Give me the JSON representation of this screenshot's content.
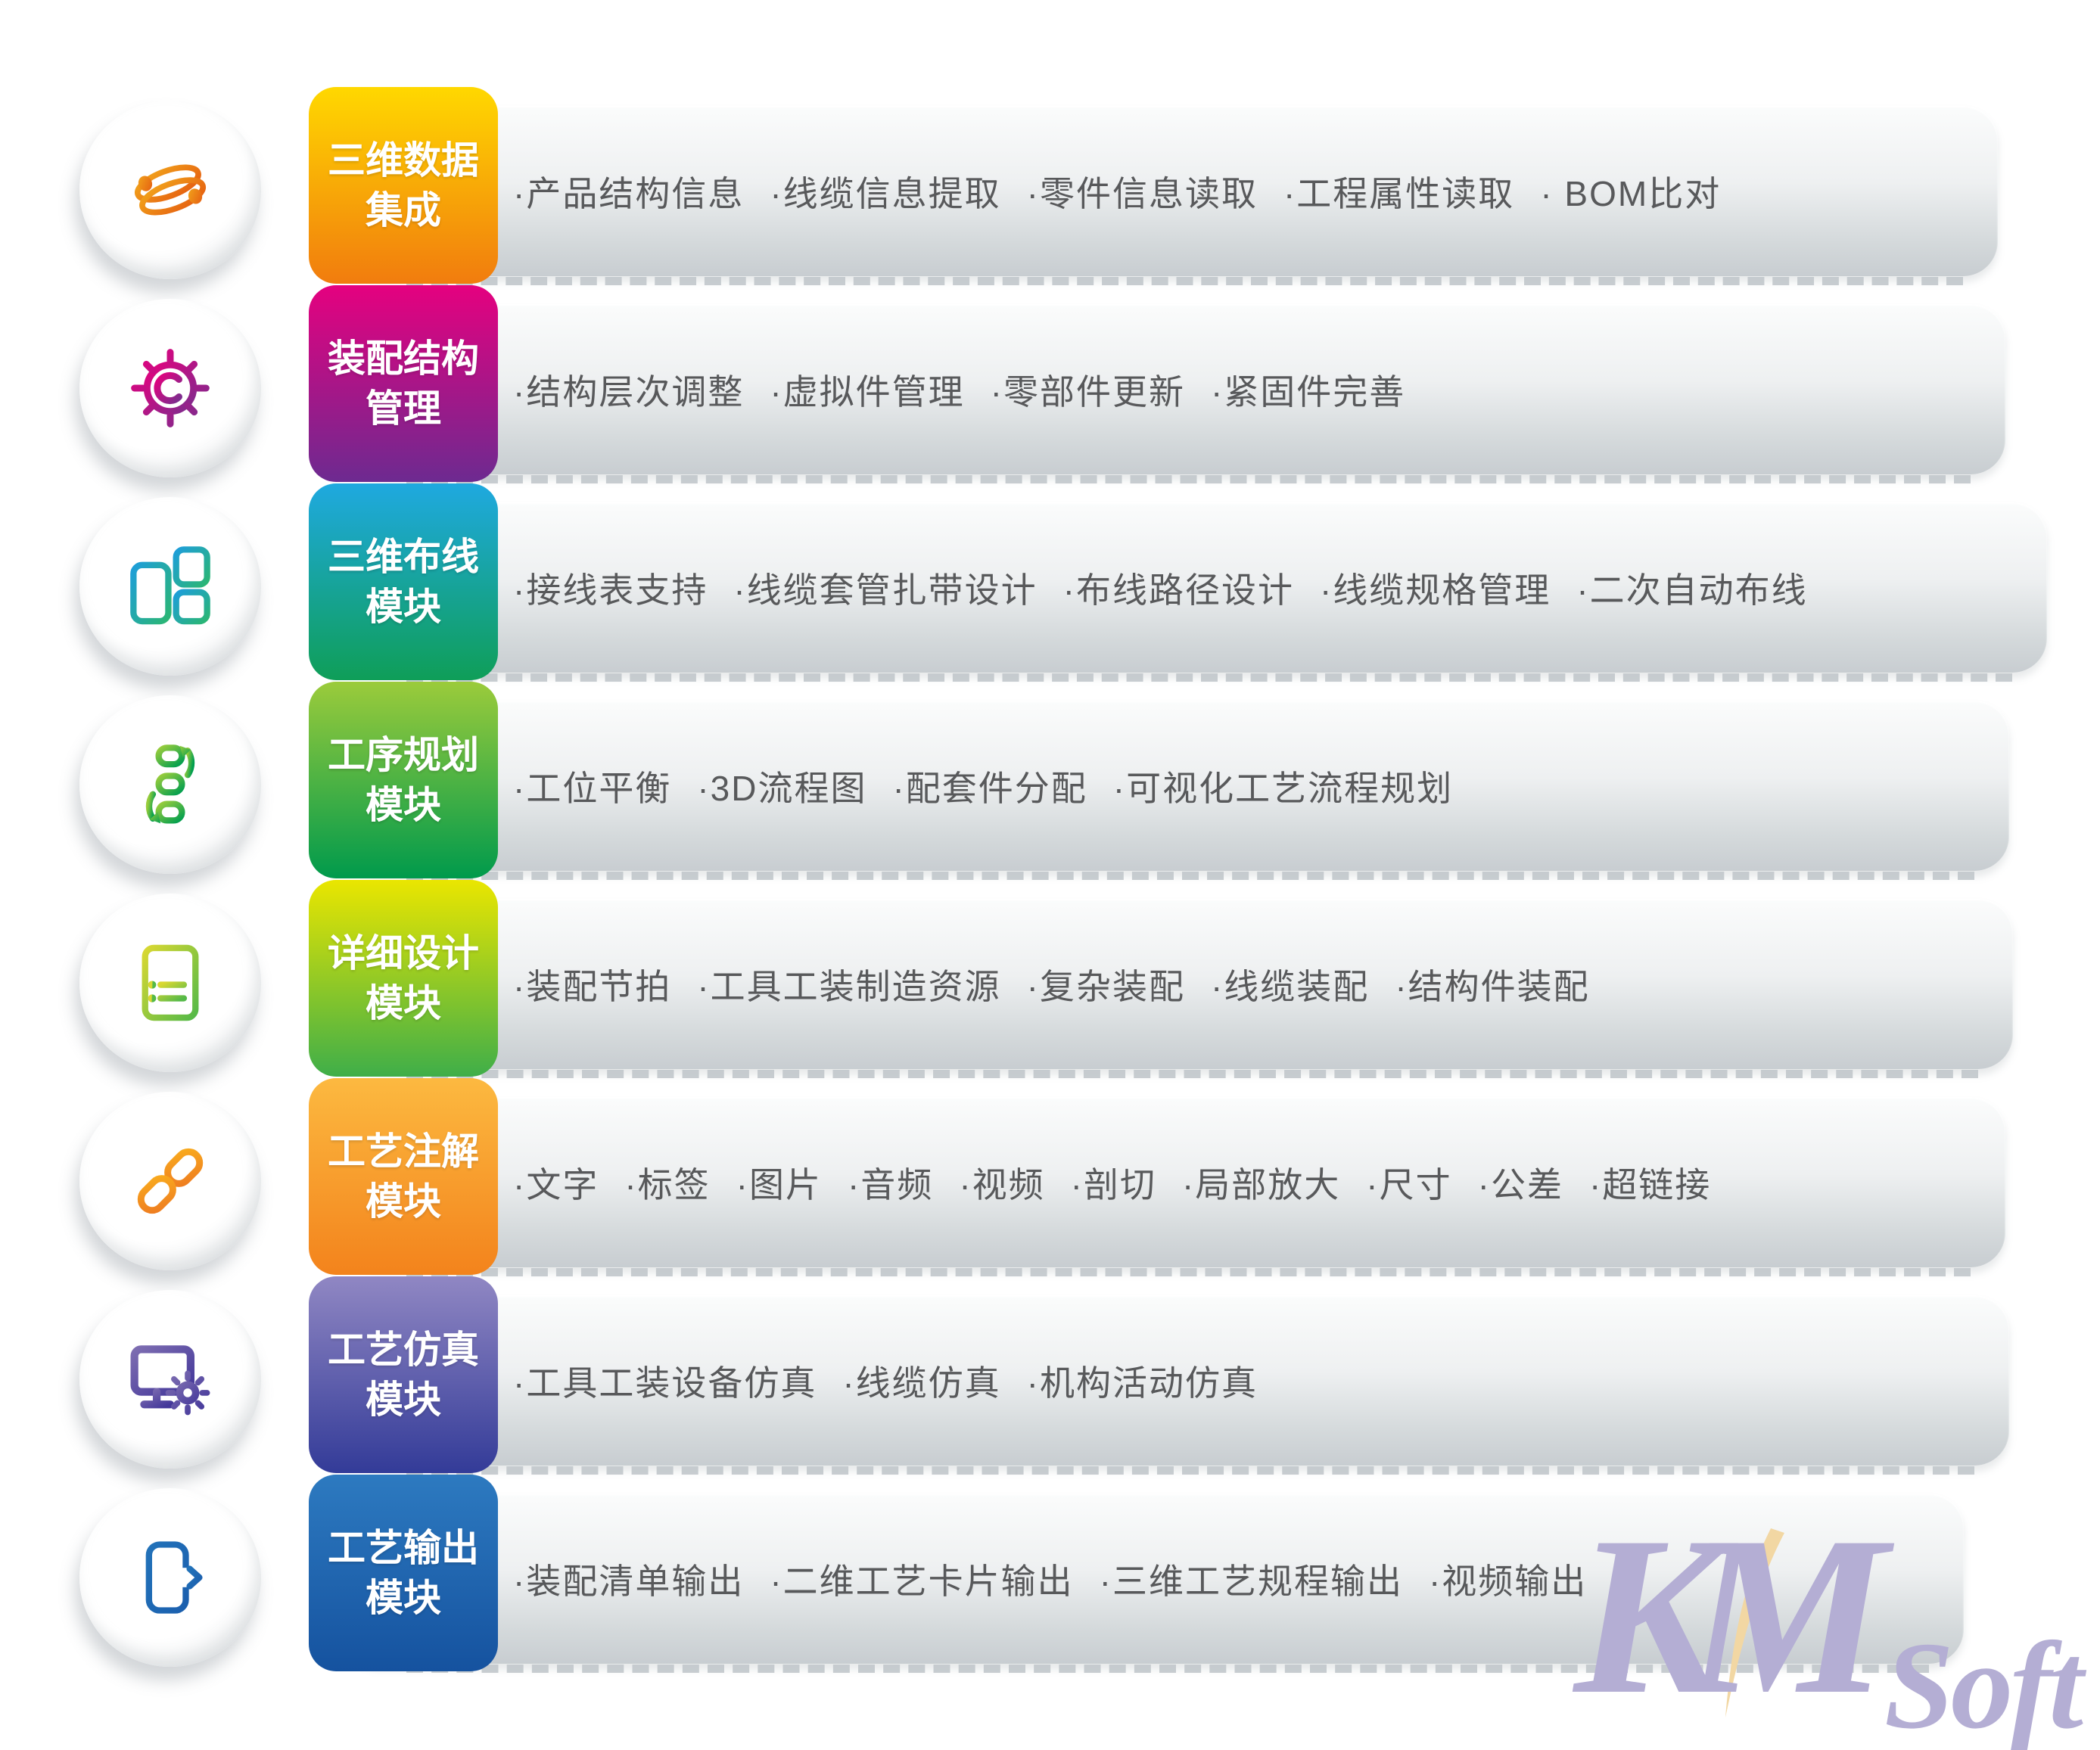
{
  "page": {
    "background": "#ffffff",
    "text_color": "#58595b"
  },
  "ui": {
    "bullet": "·"
  },
  "watermark": {
    "km": "KM",
    "soft": "Soft",
    "letters_color": "#b4aed4",
    "swoosh_color": "#f2d7a3"
  },
  "rows": [
    {
      "icon": "orbit-icon",
      "label_line1": "三维数据",
      "label_line2": "集成",
      "label_gradient": [
        "#ffd800",
        "#f17c0e"
      ],
      "icon_gradient": [
        "#f2a51b",
        "#e55d11"
      ],
      "features": [
        "产品结构信息",
        "线缆信息提取",
        "零件信息读取",
        "工程属性读取",
        " BOM比对"
      ],
      "bar_right": 2640
    },
    {
      "icon": "gear-icon",
      "label_line1": "装配结构",
      "label_line2": "管理",
      "label_gradient": [
        "#e5017f",
        "#6d2a90"
      ],
      "icon_gradient": [
        "#e6007e",
        "#7b2d8e"
      ],
      "features": [
        "结构层次调整",
        "虚拟件管理",
        "零部件更新",
        "紧固件完善"
      ],
      "bar_right": 2650
    },
    {
      "icon": "blocks-icon",
      "label_line1": "三维布线",
      "label_line2": "模块",
      "label_gradient": [
        "#1fa9e0",
        "#0f9e58"
      ],
      "icon_gradient": [
        "#1e9ed9",
        "#2bb673"
      ],
      "features": [
        "接线表支持",
        "线缆套管扎带设计",
        "布线路径设计",
        "线缆规格管理",
        "二次自动布线"
      ],
      "bar_right": 2705
    },
    {
      "icon": "process-icon",
      "label_line1": "工序规划",
      "label_line2": "模块",
      "label_gradient": [
        "#9bcb3b",
        "#009a4c"
      ],
      "icon_gradient": [
        "#9acd3c",
        "#009e4f"
      ],
      "features": [
        "工位平衡",
        "3D流程图",
        "配套件分配",
        "可视化工艺流程规划"
      ],
      "bar_right": 2655
    },
    {
      "icon": "document-icon",
      "label_line1": "详细设计",
      "label_line2": "模块",
      "label_gradient": [
        "#eae600",
        "#3fae49"
      ],
      "icon_gradient": [
        "#d9d832",
        "#54b948"
      ],
      "features": [
        "装配节拍",
        "工具工装制造资源",
        "复杂装配",
        "线缆装配",
        "结构件装配"
      ],
      "bar_right": 2660
    },
    {
      "icon": "chain-link-icon",
      "label_line1": "工艺注解",
      "label_line2": "模块",
      "label_gradient": [
        "#fcb940",
        "#f3831c"
      ],
      "icon_gradient": [
        "#f9ab1e",
        "#ee7c20"
      ],
      "features": [
        "文字",
        "标签",
        "图片",
        "音频",
        "视频",
        "剖切",
        "局部放大",
        "尺寸",
        "公差",
        "超链接"
      ],
      "bar_right": 2650
    },
    {
      "icon": "monitor-gear-icon",
      "label_line1": "工艺仿真",
      "label_line2": "模块",
      "label_gradient": [
        "#9087c3",
        "#333b98"
      ],
      "icon_gradient": [
        "#7d6db1",
        "#43379a"
      ],
      "features": [
        "工具工装设备仿真",
        "线缆仿真",
        "机构活动仿真"
      ],
      "bar_right": 2655
    },
    {
      "icon": "export-icon",
      "label_line1": "工艺输出",
      "label_line2": "模块",
      "label_gradient": [
        "#2d7ac0",
        "#15529f"
      ],
      "icon_gradient": [
        "#2272b9",
        "#1b5fae"
      ],
      "features": [
        "装配清单输出",
        "二维工艺卡片输出",
        "三维工艺规程输出",
        "视频输出"
      ],
      "bar_right": 2595
    }
  ]
}
